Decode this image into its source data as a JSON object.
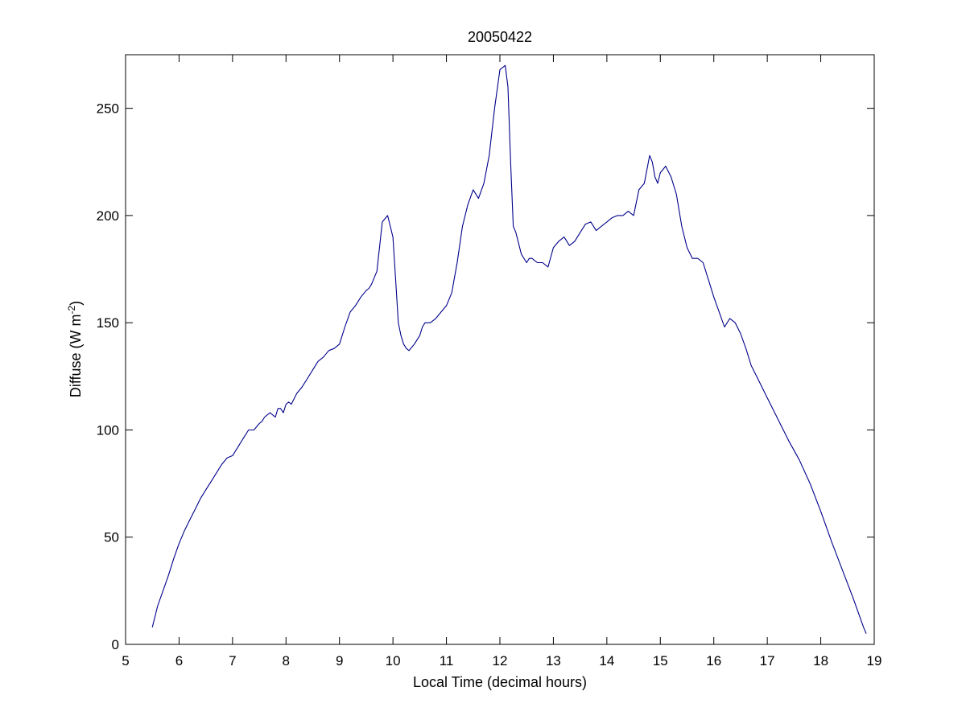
{
  "chart_data": {
    "type": "line",
    "title": "20050422",
    "xlabel": "Local Time (decimal hours)",
    "ylabel_prefix": "Diffuse (W m",
    "ylabel_superscript": "-2",
    "ylabel_suffix": ")",
    "xlim": [
      5,
      19
    ],
    "ylim": [
      0,
      275
    ],
    "xticks": [
      5,
      6,
      7,
      8,
      9,
      10,
      11,
      12,
      13,
      14,
      15,
      16,
      17,
      18,
      19
    ],
    "yticks": [
      0,
      50,
      100,
      150,
      200,
      250
    ],
    "grid": false,
    "line_color": "#00008b",
    "series": [
      {
        "x": [
          5.5,
          5.6,
          5.7,
          5.8,
          5.9,
          6.0,
          6.1,
          6.2,
          6.3,
          6.4,
          6.5,
          6.6,
          6.7,
          6.8,
          6.9,
          7.0,
          7.1,
          7.2,
          7.3,
          7.4,
          7.5,
          7.55,
          7.6,
          7.7,
          7.8,
          7.85,
          7.9,
          7.95,
          8.0,
          8.05,
          8.1,
          8.2,
          8.3,
          8.4,
          8.5,
          8.6,
          8.7,
          8.8,
          8.9,
          9.0,
          9.1,
          9.2,
          9.3,
          9.4,
          9.5,
          9.55,
          9.6,
          9.7,
          9.8,
          9.9,
          10.0,
          10.05,
          10.1,
          10.15,
          10.2,
          10.25,
          10.3,
          10.4,
          10.5,
          10.55,
          10.6,
          10.7,
          10.8,
          10.9,
          11.0,
          11.1,
          11.2,
          11.3,
          11.4,
          11.5,
          11.6,
          11.7,
          11.8,
          11.9,
          12.0,
          12.1,
          12.15,
          12.2,
          12.25,
          12.3,
          12.4,
          12.5,
          12.55,
          12.6,
          12.7,
          12.8,
          12.9,
          13.0,
          13.1,
          13.2,
          13.3,
          13.4,
          13.5,
          13.6,
          13.7,
          13.8,
          13.9,
          14.0,
          14.1,
          14.2,
          14.3,
          14.4,
          14.5,
          14.6,
          14.7,
          14.8,
          14.85,
          14.9,
          14.95,
          15.0,
          15.1,
          15.2,
          15.3,
          15.4,
          15.5,
          15.6,
          15.7,
          15.8,
          15.9,
          16.0,
          16.1,
          16.2,
          16.3,
          16.4,
          16.5,
          16.6,
          16.7,
          16.8,
          16.9,
          17.0,
          17.2,
          17.4,
          17.6,
          17.8,
          18.0,
          18.2,
          18.4,
          18.6,
          18.8,
          18.85
        ],
        "y": [
          8,
          18,
          25,
          32,
          40,
          47,
          53,
          58,
          63,
          68,
          72,
          76,
          80,
          84,
          87,
          88,
          92,
          96,
          100,
          100,
          103,
          104,
          106,
          108,
          106,
          110,
          110,
          108,
          112,
          113,
          112,
          117,
          120,
          124,
          128,
          132,
          134,
          137,
          138,
          140,
          148,
          155,
          158,
          162,
          165,
          166,
          168,
          174,
          197,
          200,
          190,
          170,
          150,
          144,
          140,
          138,
          137,
          140,
          144,
          148,
          150,
          150,
          152,
          155,
          158,
          164,
          178,
          195,
          205,
          212,
          208,
          215,
          228,
          250,
          268,
          270,
          260,
          225,
          195,
          192,
          182,
          178,
          180,
          180,
          178,
          178,
          176,
          185,
          188,
          190,
          186,
          188,
          192,
          196,
          197,
          193,
          195,
          197,
          199,
          200,
          200,
          202,
          200,
          212,
          215,
          228,
          225,
          218,
          215,
          220,
          223,
          218,
          210,
          195,
          185,
          180,
          180,
          178,
          170,
          162,
          155,
          148,
          152,
          150,
          145,
          138,
          130,
          125,
          120,
          115,
          105,
          95,
          86,
          75,
          62,
          48,
          35,
          22,
          8,
          5
        ]
      }
    ]
  }
}
